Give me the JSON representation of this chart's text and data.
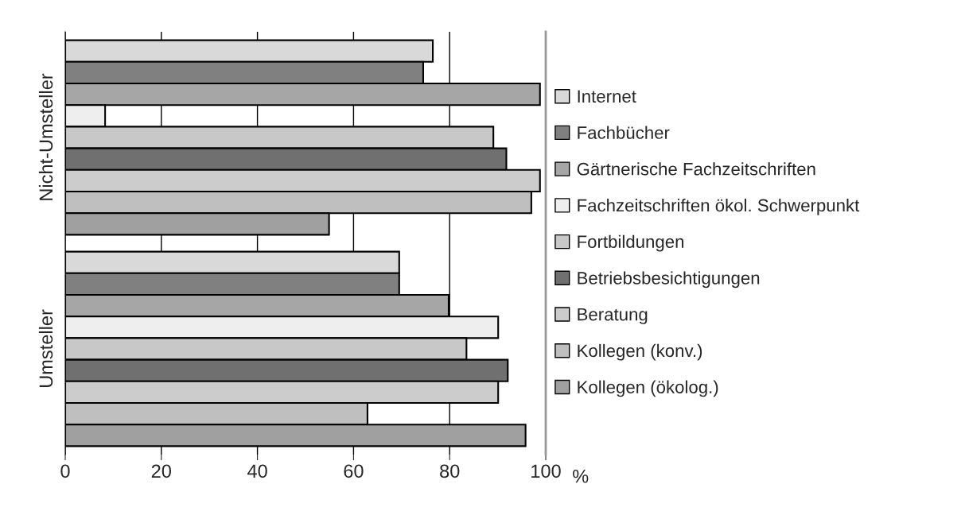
{
  "chart_data": {
    "type": "bar",
    "orientation": "horizontal",
    "xlabel": "%",
    "categories": [
      "Nicht-Umsteller",
      "Umsteller"
    ],
    "xlim": [
      0,
      100
    ],
    "xticks": [
      0,
      20,
      40,
      60,
      80,
      100
    ],
    "grid": "x",
    "legend": "right",
    "series": [
      {
        "name": "Internet",
        "color": "#d9d9d9",
        "values": [
          76.5,
          69.5
        ]
      },
      {
        "name": "Fachbücher",
        "color": "#808080",
        "values": [
          74.5,
          69.5
        ]
      },
      {
        "name": "Gärtnerische Fachzeitschriften",
        "color": "#a6a6a6",
        "values": [
          98.8,
          79.8
        ]
      },
      {
        "name": "Fachzeitschriften ökol. Schwerpunkt",
        "color": "#eeeeee",
        "values": [
          8.3,
          90.1
        ]
      },
      {
        "name": "Fortbildungen",
        "color": "#c8c8c8",
        "values": [
          89.1,
          83.5
        ]
      },
      {
        "name": "Betriebsbesichtigungen",
        "color": "#707070",
        "values": [
          91.8,
          92.1
        ]
      },
      {
        "name": "Beratung",
        "color": "#cccccc",
        "values": [
          98.8,
          90.1
        ]
      },
      {
        "name": "Kollegen (konv.)",
        "color": "#bfbfbf",
        "values": [
          97.0,
          62.9
        ]
      },
      {
        "name": "Kollegen (ökolog.)",
        "color": "#a0a0a0",
        "values": [
          54.9,
          95.8
        ]
      }
    ]
  }
}
